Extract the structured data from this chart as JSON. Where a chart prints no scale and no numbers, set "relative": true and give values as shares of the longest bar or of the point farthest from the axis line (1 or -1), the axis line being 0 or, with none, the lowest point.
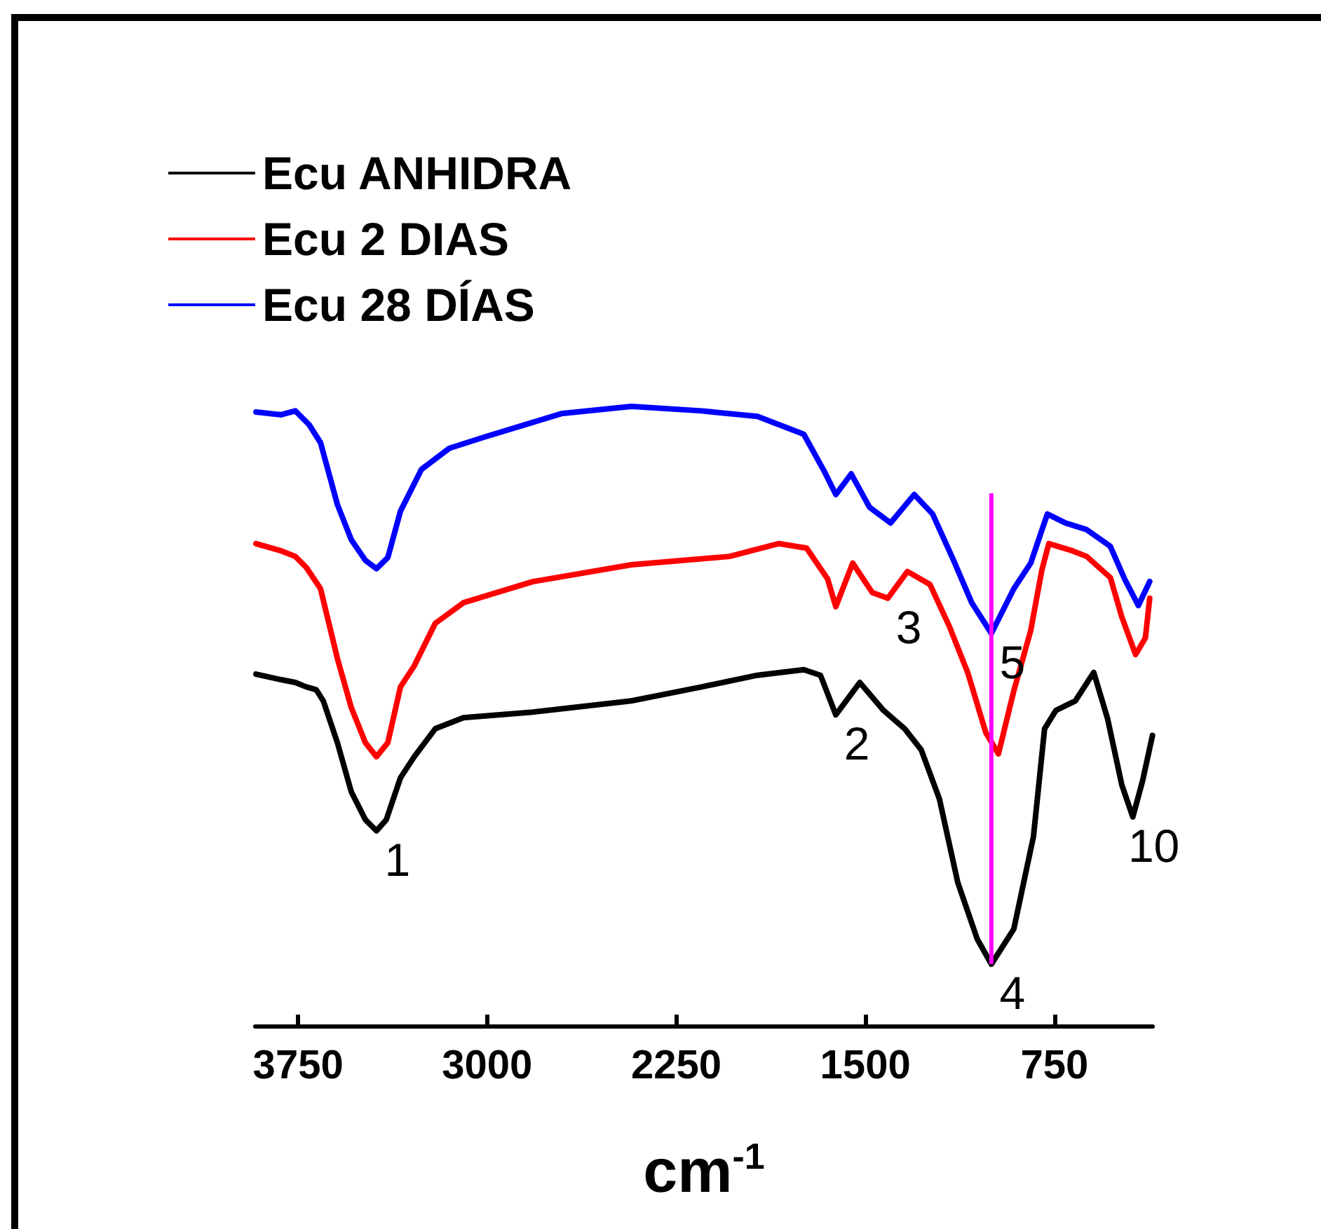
{
  "chart_data": {
    "type": "line",
    "relative": true,
    "xlabel": "cm$^{-1}$",
    "xlim": [
      3920,
      360
    ],
    "xticks": [
      3750,
      3000,
      2250,
      1500,
      750
    ],
    "legend": "top left",
    "grid": false,
    "marker": "none",
    "line_style": "solid",
    "tick_labels": "x",
    "series": [
      {
        "name": "Ecu ANHIDRA",
        "color": "#000000",
        "x": [
          3917,
          3817,
          3761,
          3717,
          3678,
          3650,
          3594,
          3539,
          3483,
          3439,
          3400,
          3344,
          3289,
          3206,
          3094,
          2817,
          2428,
          2150,
          1928,
          1744,
          1678,
          1617,
          1522,
          1428,
          1344,
          1278,
          1206,
          1133,
          1056,
          1000,
          911,
          833,
          789,
          744,
          667,
          594,
          539,
          483,
          439,
          400,
          361
        ],
        "values": [
          0.52,
          0.51,
          0.505,
          0.497,
          0.492,
          0.472,
          0.397,
          0.309,
          0.259,
          0.239,
          0.259,
          0.334,
          0.372,
          0.422,
          0.442,
          0.452,
          0.472,
          0.497,
          0.518,
          0.528,
          0.518,
          0.447,
          0.505,
          0.455,
          0.422,
          0.384,
          0.296,
          0.146,
          0.045,
          0.0,
          0.063,
          0.229,
          0.422,
          0.455,
          0.472,
          0.523,
          0.44,
          0.322,
          0.264,
          0.329,
          0.41
        ]
      },
      {
        "name": "Ecu 2 DIAS",
        "color": "#ff0000",
        "x": [
          3917,
          3817,
          3761,
          3717,
          3661,
          3594,
          3539,
          3483,
          3439,
          3394,
          3344,
          3289,
          3206,
          3094,
          2817,
          2428,
          2039,
          1844,
          1733,
          1650,
          1617,
          1550,
          1472,
          1411,
          1333,
          1244,
          1167,
          1094,
          1022,
          972,
          911,
          844,
          800,
          772,
          678,
          622,
          528,
          483,
          428,
          389,
          372
        ],
        "values": [
          0.754,
          0.741,
          0.731,
          0.711,
          0.673,
          0.548,
          0.46,
          0.397,
          0.372,
          0.397,
          0.497,
          0.535,
          0.611,
          0.648,
          0.686,
          0.716,
          0.731,
          0.754,
          0.746,
          0.691,
          0.641,
          0.719,
          0.666,
          0.656,
          0.704,
          0.681,
          0.606,
          0.523,
          0.415,
          0.377,
          0.49,
          0.598,
          0.706,
          0.754,
          0.741,
          0.731,
          0.693,
          0.623,
          0.555,
          0.585,
          0.656
        ]
      },
      {
        "name": "Ecu 28 DÍAS",
        "color": "#0000ff",
        "x": [
          3917,
          3817,
          3761,
          3706,
          3661,
          3594,
          3539,
          3483,
          3439,
          3394,
          3344,
          3261,
          3150,
          3011,
          2706,
          2428,
          2150,
          1928,
          1744,
          1661,
          1617,
          1556,
          1483,
          1400,
          1306,
          1233,
          1150,
          1078,
          1000,
          911,
          844,
          778,
          706,
          622,
          528,
          472,
          417,
          372
        ],
        "values": [
          0.99,
          0.985,
          0.992,
          0.967,
          0.935,
          0.824,
          0.761,
          0.724,
          0.709,
          0.729,
          0.812,
          0.887,
          0.925,
          0.945,
          0.987,
          1.0,
          0.992,
          0.982,
          0.95,
          0.882,
          0.842,
          0.879,
          0.819,
          0.791,
          0.842,
          0.807,
          0.724,
          0.648,
          0.593,
          0.673,
          0.719,
          0.807,
          0.791,
          0.779,
          0.749,
          0.691,
          0.643,
          0.686
        ]
      }
    ],
    "ref_lines": [
      {
        "axis": "x",
        "value": 1000,
        "color": "#ff00ff"
      }
    ],
    "annotations": [
      {
        "text": "1",
        "x": 3439,
        "y": 0.239
      },
      {
        "text": "2",
        "x": 1617,
        "y": 0.447
      },
      {
        "text": "3",
        "x": 1411,
        "y": 0.656
      },
      {
        "text": "4",
        "x": 1000,
        "y": 0.0
      },
      {
        "text": "5",
        "x": 1000,
        "y": 0.593
      },
      {
        "text": "10",
        "x": 439,
        "y": 0.264
      }
    ]
  }
}
